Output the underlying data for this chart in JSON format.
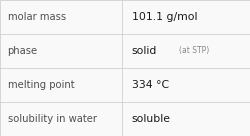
{
  "rows": [
    {
      "label": "molar mass",
      "value": "101.1 g/mol",
      "value2": null
    },
    {
      "label": "phase",
      "value": "solid",
      "value2": "(at STP)"
    },
    {
      "label": "melting point",
      "value": "334 °C",
      "value2": null
    },
    {
      "label": "solubility in water",
      "value": "soluble",
      "value2": null
    }
  ],
  "col_split": 0.485,
  "background_color": "#f9f9f9",
  "border_color": "#c8c8c8",
  "label_color": "#505050",
  "value_color": "#1a1a1a",
  "value2_color": "#888888",
  "label_fontsize": 7.2,
  "value_fontsize": 7.8,
  "value2_fontsize": 5.5
}
